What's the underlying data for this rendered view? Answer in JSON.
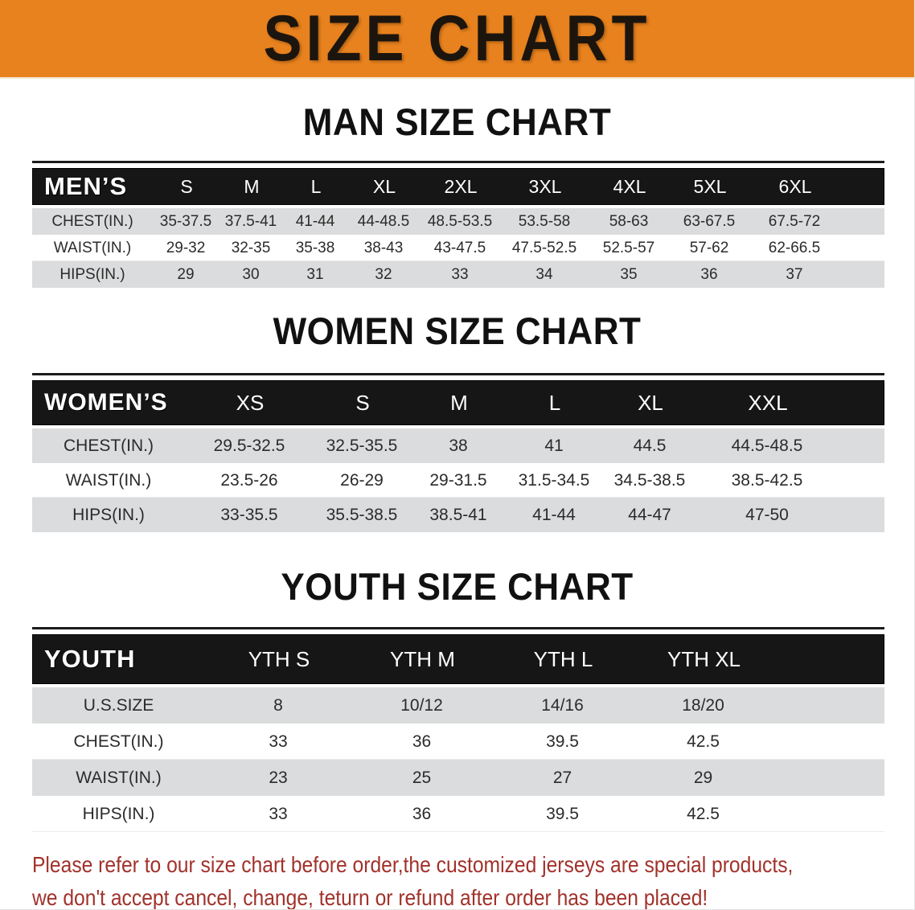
{
  "banner": {
    "title": "SIZE CHART"
  },
  "colors": {
    "banner_bg": "#E8821E",
    "banner_text": "#1C150E",
    "header_bar": "#161616",
    "header_text": "#FFFFFF",
    "stripe_gray": "#DBDCDD",
    "table_text": "#2B2B2B",
    "heading_text": "#111111",
    "disclaimer_text": "#A1322B"
  },
  "sections": [
    {
      "heading": "MAN SIZE CHART",
      "table": {
        "header_label": "MEN’S",
        "columns": [
          "S",
          "M",
          "L",
          "XL",
          "2XL",
          "3XL",
          "4XL",
          "5XL",
          "6XL"
        ],
        "rows": [
          {
            "label": "CHEST(IN.)",
            "values": [
              "35-37.5",
              "37.5-41",
              "41-44",
              "44-48.5",
              "48.5-53.5",
              "53.5-58",
              "58-63",
              "63-67.5",
              "67.5-72"
            ]
          },
          {
            "label": "WAIST(IN.)",
            "values": [
              "29-32",
              "32-35",
              "35-38",
              "38-43",
              "43-47.5",
              "47.5-52.5",
              "52.5-57",
              "57-62",
              "62-66.5"
            ]
          },
          {
            "label": "HIPS(IN.)",
            "values": [
              "29",
              "30",
              "31",
              "32",
              "33",
              "34",
              "35",
              "36",
              "37"
            ]
          }
        ]
      }
    },
    {
      "heading": "WOMEN SIZE CHART",
      "table": {
        "header_label": "WOMEN’S",
        "columns": [
          "XS",
          "S",
          "M",
          "L",
          "XL",
          "XXL"
        ],
        "rows": [
          {
            "label": "CHEST(IN.)",
            "values": [
              "29.5-32.5",
              "32.5-35.5",
              "38",
              "41",
              "44.5",
              "44.5-48.5"
            ]
          },
          {
            "label": "WAIST(IN.)",
            "values": [
              "23.5-26",
              "26-29",
              "29-31.5",
              "31.5-34.5",
              "34.5-38.5",
              "38.5-42.5"
            ]
          },
          {
            "label": "HIPS(IN.)",
            "values": [
              "33-35.5",
              "35.5-38.5",
              "38.5-41",
              "41-44",
              "44-47",
              "47-50"
            ]
          }
        ]
      }
    },
    {
      "heading": "YOUTH SIZE CHART",
      "table": {
        "header_label": "YOUTH",
        "columns": [
          "YTH S",
          "YTH M",
          "YTH L",
          "YTH XL"
        ],
        "rows": [
          {
            "label": "U.S.SIZE",
            "values": [
              "8",
              "10/12",
              "14/16",
              "18/20"
            ]
          },
          {
            "label": "CHEST(IN.)",
            "values": [
              "33",
              "36",
              "39.5",
              "42.5"
            ]
          },
          {
            "label": "WAIST(IN.)",
            "values": [
              "23",
              "25",
              "27",
              "29"
            ]
          },
          {
            "label": "HIPS(IN.)",
            "values": [
              "33",
              "36",
              "39.5",
              "42.5"
            ]
          }
        ]
      }
    }
  ],
  "disclaimer": {
    "line1": "Please refer to our size chart before order,the customized jerseys are special products,",
    "line2": "we don't accept cancel, change, teturn or refund after order has been placed!"
  }
}
